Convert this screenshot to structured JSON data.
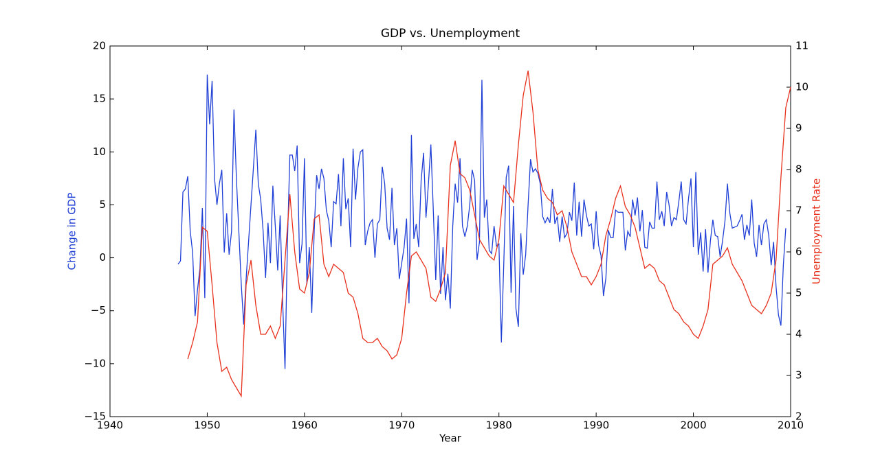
{
  "chart_data": {
    "type": "line",
    "title": "GDP vs. Unemployment",
    "x_label": "Year",
    "y_label": "Change in GDP",
    "y2_label": "Unemployment Rate",
    "y_label_color": "#1f3fd6",
    "y2_label_color": "#e8301c",
    "xlim": [
      1940,
      2010
    ],
    "xticks": [
      1940,
      1950,
      1960,
      1970,
      1980,
      1990,
      2000,
      2010
    ],
    "ylim": [
      -15,
      20
    ],
    "yticks": [
      {
        "value": -15,
        "label": "−15"
      },
      {
        "value": -10,
        "label": "−10"
      },
      {
        "value": -5,
        "label": "−5"
      },
      0,
      5,
      10,
      15,
      20
    ],
    "y2lim": [
      2,
      11
    ],
    "y2ticks": [
      2,
      3,
      4,
      5,
      6,
      7,
      8,
      9,
      10,
      11
    ],
    "series": [
      {
        "color": "#1f3fd6",
        "axis": "y",
        "x": [
          1947,
          1947.25,
          1947.5,
          1947.75,
          1948,
          1948.25,
          1948.5,
          1948.75,
          1949,
          1949.25,
          1949.5,
          1949.75,
          1950,
          1950.25,
          1950.5,
          1950.75,
          1951,
          1951.25,
          1951.5,
          1951.75,
          1952,
          1952.25,
          1952.5,
          1952.75,
          1953,
          1953.25,
          1953.5,
          1953.75,
          1954,
          1954.25,
          1954.5,
          1954.75,
          1955,
          1955.25,
          1955.5,
          1955.75,
          1956,
          1956.25,
          1956.5,
          1956.75,
          1957,
          1957.25,
          1957.5,
          1957.75,
          1958,
          1958.25,
          1958.5,
          1958.75,
          1959,
          1959.25,
          1959.5,
          1959.75,
          1960,
          1960.25,
          1960.5,
          1960.75,
          1961,
          1961.25,
          1961.5,
          1961.75,
          1962,
          1962.25,
          1962.5,
          1962.75,
          1963,
          1963.25,
          1963.5,
          1963.75,
          1964,
          1964.25,
          1964.5,
          1964.75,
          1965,
          1965.25,
          1965.5,
          1965.75,
          1966,
          1966.25,
          1966.5,
          1966.75,
          1967,
          1967.25,
          1967.5,
          1967.75,
          1968,
          1968.25,
          1968.5,
          1968.75,
          1969,
          1969.25,
          1969.5,
          1969.75,
          1970,
          1970.25,
          1970.5,
          1970.75,
          1971,
          1971.25,
          1971.5,
          1971.75,
          1972,
          1972.25,
          1972.5,
          1972.75,
          1973,
          1973.25,
          1973.5,
          1973.75,
          1974,
          1974.25,
          1974.5,
          1974.75,
          1975,
          1975.25,
          1975.5,
          1975.75,
          1976,
          1976.25,
          1976.5,
          1976.75,
          1977,
          1977.25,
          1977.5,
          1977.75,
          1978,
          1978.25,
          1978.5,
          1978.75,
          1979,
          1979.25,
          1979.5,
          1979.75,
          1980,
          1980.25,
          1980.5,
          1980.75,
          1981,
          1981.25,
          1981.5,
          1981.75,
          1982,
          1982.25,
          1982.5,
          1982.75,
          1983,
          1983.25,
          1983.5,
          1983.75,
          1984,
          1984.25,
          1984.5,
          1984.75,
          1985,
          1985.25,
          1985.5,
          1985.75,
          1986,
          1986.25,
          1986.5,
          1986.75,
          1987,
          1987.25,
          1987.5,
          1987.75,
          1988,
          1988.25,
          1988.5,
          1988.75,
          1989,
          1989.25,
          1989.5,
          1989.75,
          1990,
          1990.25,
          1990.5,
          1990.75,
          1991,
          1991.25,
          1991.5,
          1991.75,
          1992,
          1992.25,
          1992.5,
          1992.75,
          1993,
          1993.25,
          1993.5,
          1993.75,
          1994,
          1994.25,
          1994.5,
          1994.75,
          1995,
          1995.25,
          1995.5,
          1995.75,
          1996,
          1996.25,
          1996.5,
          1996.75,
          1997,
          1997.25,
          1997.5,
          1997.75,
          1998,
          1998.25,
          1998.5,
          1998.75,
          1999,
          1999.25,
          1999.5,
          1999.75,
          2000,
          2000.25,
          2000.5,
          2000.75,
          2001,
          2001.25,
          2001.5,
          2001.75,
          2002,
          2002.25,
          2002.5,
          2002.75,
          2003,
          2003.25,
          2003.5,
          2003.75,
          2004,
          2004.25,
          2004.5,
          2004.75,
          2005,
          2005.25,
          2005.5,
          2005.75,
          2006,
          2006.25,
          2006.5,
          2006.75,
          2007,
          2007.25,
          2007.5,
          2007.75,
          2008,
          2008.25,
          2008.5,
          2008.75,
          2009,
          2009.25,
          2009.5
        ],
        "values": [
          -0.6,
          -0.3,
          6.2,
          6.5,
          7.7,
          2.5,
          0.5,
          -5.5,
          -3,
          -1,
          4.7,
          -3.8,
          17.3,
          12.6,
          16.7,
          7.5,
          5.0,
          7,
          8.3,
          0.5,
          4.2,
          0.3,
          2.5,
          14,
          7.5,
          2.5,
          -2.5,
          -6.3,
          -2,
          1.5,
          5,
          8.5,
          12.1,
          7,
          5.5,
          2.5,
          -1.9,
          3.3,
          -0.5,
          6.8,
          3,
          -1.2,
          4,
          -4,
          -10.5,
          1.5,
          9.7,
          9.7,
          8.2,
          10.6,
          -0.5,
          1.3,
          9.4,
          -2.5,
          1,
          -5.2,
          2.5,
          7.8,
          6.5,
          8.4,
          7.5,
          4.5,
          3.5,
          1,
          5.3,
          5.1,
          7.9,
          3.0,
          9.4,
          4.6,
          5.6,
          1,
          10.3,
          5.5,
          8.5,
          10,
          10.2,
          1.2,
          2.5,
          3.3,
          3.6,
          0,
          3.2,
          3.6,
          8.6,
          7,
          2.8,
          1.7,
          6.6,
          1.2,
          2.8,
          -2,
          -0.5,
          1,
          3.7,
          -4.3,
          11.6,
          1.8,
          3.2,
          1,
          7.3,
          9.9,
          3.8,
          7,
          10.7,
          4.5,
          -2.1,
          4,
          -3.4,
          1,
          -4,
          -1.5,
          -4.8,
          3,
          7,
          5.2,
          9.4,
          3,
          2,
          3,
          5,
          8.3,
          7.3,
          -0.2,
          1.5,
          16.8,
          3.8,
          5.5,
          0.7,
          0.4,
          3,
          1.1,
          1.3,
          -8,
          -0.5,
          7.6,
          8.7,
          -3.3,
          4.9,
          -4.8,
          -6.5,
          2.3,
          -1.6,
          0.3,
          5,
          9.3,
          8.1,
          8.4,
          8,
          7,
          3.9,
          3.3,
          3.8,
          3.3,
          6.5,
          3.2,
          3.9,
          1.5,
          3.9,
          1.9,
          2.3,
          4.3,
          3.5,
          7.1,
          2.1,
          5.3,
          2,
          5.5,
          4,
          3,
          3.2,
          0.8,
          4.4,
          1.2,
          0.2,
          -3.6,
          -1.9,
          2.6,
          1.9,
          1.9,
          4.5,
          4.3,
          4.3,
          4.3,
          0.7,
          2.5,
          2,
          5.5,
          4,
          5.7,
          2.5,
          4.5,
          1,
          0.9,
          3.4,
          2.8,
          2.8,
          7.2,
          3.6,
          4.4,
          3,
          6.2,
          5,
          3,
          3.8,
          3.6,
          5.3,
          7.2,
          3.6,
          3.2,
          5.6,
          7.5,
          1,
          8.1,
          0.3,
          2.4,
          -1.3,
          2.7,
          -1.4,
          1.6,
          3.6,
          2.1,
          2,
          0.1,
          1.6,
          3.5,
          7,
          4.2,
          2.8,
          2.9,
          3.0,
          3.5,
          4.1,
          1.7,
          3.1,
          2.1,
          5.5,
          1.4,
          0.1,
          3.1,
          1.2,
          3.2,
          3.6,
          2.1,
          -0.7,
          1.5,
          -2.7,
          -5.4,
          -6.4,
          -0.7,
          2.8
        ]
      },
      {
        "color": "#e8301c",
        "axis": "y2",
        "x": [
          1948,
          1948.5,
          1949,
          1949.5,
          1950,
          1950.5,
          1951,
          1951.5,
          1952,
          1952.5,
          1953,
          1953.5,
          1954,
          1954.5,
          1955,
          1955.5,
          1956,
          1956.5,
          1957,
          1957.5,
          1958,
          1958.5,
          1959,
          1959.5,
          1960,
          1960.5,
          1961,
          1961.5,
          1962,
          1962.5,
          1963,
          1963.5,
          1964,
          1964.5,
          1965,
          1965.5,
          1966,
          1966.5,
          1967,
          1967.5,
          1968,
          1968.5,
          1969,
          1969.5,
          1970,
          1970.5,
          1971,
          1971.5,
          1972,
          1972.5,
          1973,
          1973.5,
          1974,
          1974.5,
          1975,
          1975.5,
          1976,
          1976.5,
          1977,
          1977.5,
          1978,
          1978.5,
          1979,
          1979.5,
          1980,
          1980.5,
          1981,
          1981.5,
          1982,
          1982.5,
          1983,
          1983.5,
          1984,
          1984.5,
          1985,
          1985.5,
          1986,
          1986.5,
          1987,
          1987.5,
          1988,
          1988.5,
          1989,
          1989.5,
          1990,
          1990.5,
          1991,
          1991.5,
          1992,
          1992.5,
          1993,
          1993.5,
          1994,
          1994.5,
          1995,
          1995.5,
          1996,
          1996.5,
          1997,
          1997.5,
          1998,
          1998.5,
          1999,
          1999.5,
          2000,
          2000.5,
          2001,
          2001.5,
          2002,
          2002.5,
          2003,
          2003.5,
          2004,
          2004.5,
          2005,
          2005.5,
          2006,
          2006.5,
          2007,
          2007.5,
          2008,
          2008.5,
          2009,
          2009.5,
          2010
        ],
        "values": [
          3.4,
          3.8,
          4.3,
          6.6,
          6.5,
          5.2,
          3.8,
          3.1,
          3.2,
          2.9,
          2.7,
          2.5,
          5.2,
          5.8,
          4.7,
          4.0,
          4.0,
          4.2,
          3.9,
          4.2,
          5.8,
          7.4,
          6.0,
          5.1,
          5.0,
          5.5,
          6.8,
          6.9,
          5.7,
          5.4,
          5.7,
          5.6,
          5.5,
          5.0,
          4.9,
          4.5,
          3.9,
          3.8,
          3.8,
          3.9,
          3.7,
          3.6,
          3.4,
          3.5,
          3.9,
          5.0,
          5.9,
          6.0,
          5.8,
          5.6,
          4.9,
          4.8,
          5.1,
          5.5,
          8.1,
          8.7,
          7.9,
          7.8,
          7.5,
          6.9,
          6.3,
          6.1,
          5.9,
          5.8,
          6.3,
          7.6,
          7.4,
          7.2,
          8.6,
          9.8,
          10.4,
          9.4,
          8.0,
          7.5,
          7.3,
          7.2,
          6.9,
          7.0,
          6.6,
          6.0,
          5.7,
          5.4,
          5.4,
          5.2,
          5.4,
          5.7,
          6.4,
          6.8,
          7.3,
          7.6,
          7.1,
          6.9,
          6.6,
          6.1,
          5.6,
          5.7,
          5.6,
          5.3,
          5.2,
          4.9,
          4.6,
          4.5,
          4.3,
          4.2,
          4.0,
          3.9,
          4.2,
          4.6,
          5.7,
          5.8,
          5.9,
          6.1,
          5.7,
          5.5,
          5.3,
          5.0,
          4.7,
          4.6,
          4.5,
          4.7,
          5.0,
          5.8,
          7.8,
          9.5,
          10.0
        ]
      }
    ]
  }
}
